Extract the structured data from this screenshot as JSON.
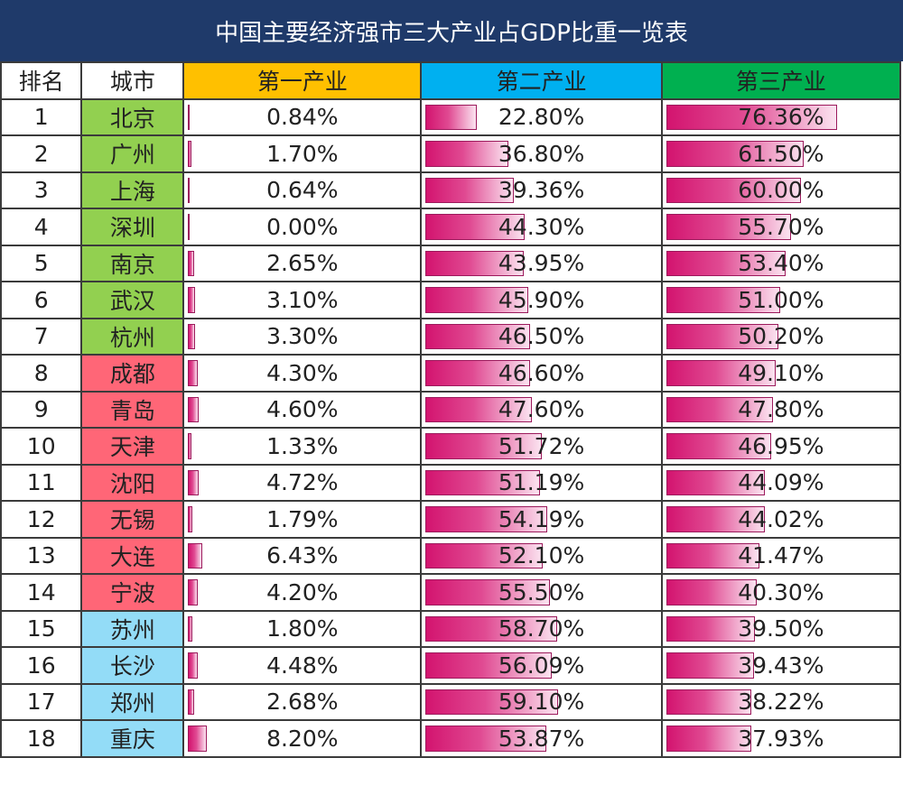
{
  "title": "中国主要经济强市三大产业占GDP比重一览表",
  "headers": {
    "rank": "排名",
    "city": "城市",
    "primary": "第一产业",
    "secondary": "第二产业",
    "tertiary": "第三产业"
  },
  "colors": {
    "title_bg": "#1f3a6a",
    "header_primary": "#ffc000",
    "header_secondary": "#00b0f0",
    "header_tertiary": "#00b050",
    "group_green": "#92d050",
    "group_red": "#ff6677",
    "group_blue": "#93dcf7",
    "bar_dark": "#d3146f",
    "bar_light": "#fbe3f0"
  },
  "chart_data": {
    "type": "table",
    "title": "中国主要经济强市三大产业占GDP比重一览表",
    "columns": [
      "排名",
      "城市",
      "第一产业",
      "第二产业",
      "第三产业"
    ],
    "rows": [
      {
        "rank": "1",
        "city": "北京",
        "group": "green",
        "p1": 0.84,
        "p2": 22.8,
        "p3": 76.36,
        "p1_label": "0.84%",
        "p2_label": "22.80%",
        "p3_label": "76.36%"
      },
      {
        "rank": "2",
        "city": "广州",
        "group": "green",
        "p1": 1.7,
        "p2": 36.8,
        "p3": 61.5,
        "p1_label": "1.70%",
        "p2_label": "36.80%",
        "p3_label": "61.50%"
      },
      {
        "rank": "3",
        "city": "上海",
        "group": "green",
        "p1": 0.64,
        "p2": 39.36,
        "p3": 60.0,
        "p1_label": "0.64%",
        "p2_label": "39.36%",
        "p3_label": "60.00%"
      },
      {
        "rank": "4",
        "city": "深圳",
        "group": "green",
        "p1": 0.0,
        "p2": 44.3,
        "p3": 55.7,
        "p1_label": "0.00%",
        "p2_label": "44.30%",
        "p3_label": "55.70%"
      },
      {
        "rank": "5",
        "city": "南京",
        "group": "green",
        "p1": 2.65,
        "p2": 43.95,
        "p3": 53.4,
        "p1_label": "2.65%",
        "p2_label": "43.95%",
        "p3_label": "53.40%"
      },
      {
        "rank": "6",
        "city": "武汉",
        "group": "green",
        "p1": 3.1,
        "p2": 45.9,
        "p3": 51.0,
        "p1_label": "3.10%",
        "p2_label": "45.90%",
        "p3_label": "51.00%"
      },
      {
        "rank": "7",
        "city": "杭州",
        "group": "green",
        "p1": 3.3,
        "p2": 46.5,
        "p3": 50.2,
        "p1_label": "3.30%",
        "p2_label": "46.50%",
        "p3_label": "50.20%"
      },
      {
        "rank": "8",
        "city": "成都",
        "group": "red",
        "p1": 4.3,
        "p2": 46.6,
        "p3": 49.1,
        "p1_label": "4.30%",
        "p2_label": "46.60%",
        "p3_label": "49.10%"
      },
      {
        "rank": "9",
        "city": "青岛",
        "group": "red",
        "p1": 4.6,
        "p2": 47.6,
        "p3": 47.8,
        "p1_label": "4.60%",
        "p2_label": "47.60%",
        "p3_label": "47.80%"
      },
      {
        "rank": "10",
        "city": "天津",
        "group": "red",
        "p1": 1.33,
        "p2": 51.72,
        "p3": 46.95,
        "p1_label": "1.33%",
        "p2_label": "51.72%",
        "p3_label": "46.95%"
      },
      {
        "rank": "11",
        "city": "沈阳",
        "group": "red",
        "p1": 4.72,
        "p2": 51.19,
        "p3": 44.09,
        "p1_label": "4.72%",
        "p2_label": "51.19%",
        "p3_label": "44.09%"
      },
      {
        "rank": "12",
        "city": "无锡",
        "group": "red",
        "p1": 1.79,
        "p2": 54.19,
        "p3": 44.02,
        "p1_label": "1.79%",
        "p2_label": "54.19%",
        "p3_label": "44.02%"
      },
      {
        "rank": "13",
        "city": "大连",
        "group": "red",
        "p1": 6.43,
        "p2": 52.1,
        "p3": 41.47,
        "p1_label": "6.43%",
        "p2_label": "52.10%",
        "p3_label": "41.47%"
      },
      {
        "rank": "14",
        "city": "宁波",
        "group": "red",
        "p1": 4.2,
        "p2": 55.5,
        "p3": 40.3,
        "p1_label": "4.20%",
        "p2_label": "55.50%",
        "p3_label": "40.30%"
      },
      {
        "rank": "15",
        "city": "苏州",
        "group": "blue",
        "p1": 1.8,
        "p2": 58.7,
        "p3": 39.5,
        "p1_label": "1.80%",
        "p2_label": "58.70%",
        "p3_label": "39.50%"
      },
      {
        "rank": "16",
        "city": "长沙",
        "group": "blue",
        "p1": 4.48,
        "p2": 56.09,
        "p3": 39.43,
        "p1_label": "4.48%",
        "p2_label": "56.09%",
        "p3_label": "39.43%"
      },
      {
        "rank": "17",
        "city": "郑州",
        "group": "blue",
        "p1": 2.68,
        "p2": 59.1,
        "p3": 38.22,
        "p1_label": "2.68%",
        "p2_label": "59.10%",
        "p3_label": "38.22%"
      },
      {
        "rank": "18",
        "city": "重庆",
        "group": "blue",
        "p1": 8.2,
        "p2": 53.87,
        "p3": 37.93,
        "p1_label": "8.20%",
        "p2_label": "53.87%",
        "p3_label": "37.93%"
      }
    ]
  }
}
